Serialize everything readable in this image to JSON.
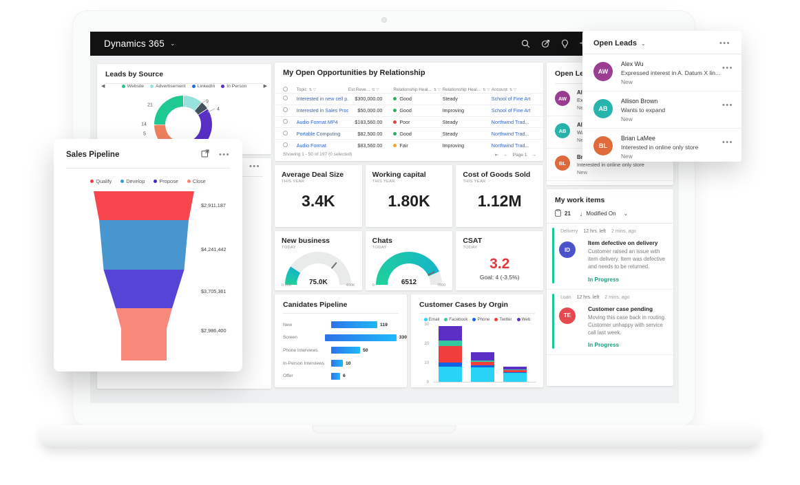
{
  "topbar": {
    "title": "Dynamics 365",
    "icons": [
      "search",
      "quick-create",
      "lightbulb",
      "add"
    ]
  },
  "panels": {
    "leads_by_source": {
      "title": "Leads by Source",
      "legend": [
        {
          "label": "Website",
          "color": "#1ec992"
        },
        {
          "label": "Advertisement",
          "color": "#97e2df"
        },
        {
          "label": "LinkedIn",
          "color": "#1a6fe0"
        },
        {
          "label": "In Person",
          "color": "#5a2fc6"
        }
      ],
      "chart": {
        "type": "pie",
        "segments": [
          {
            "label": "Advertisement",
            "value": 9,
            "color": "#97e2df"
          },
          {
            "label": "",
            "value": 4,
            "color": "#44505c"
          },
          {
            "label": "In Person",
            "value": 30,
            "color": "#5a2fc6"
          },
          {
            "label": "LinkedIn",
            "value": 5,
            "color": "#1a6fe0"
          },
          {
            "label": "",
            "value": 14,
            "color": "#f0805f"
          },
          {
            "label": "Website",
            "value": 21,
            "color": "#1ec992"
          }
        ]
      }
    },
    "opportunities": {
      "title": "My Open Opportunities by Relationship",
      "columns": [
        "Topic",
        "Est Reve...",
        "Relationship Heal...",
        "Relationship Heal...",
        "Account"
      ],
      "rows": [
        {
          "topic": "Interested in new cell p...",
          "revenue": "$300,000.00",
          "health": "Good",
          "health_color": "#27ae60",
          "trend": "Steady",
          "account": "School of Fine Art"
        },
        {
          "topic": "Interested in Sales Prod...",
          "revenue": "$50,000.00",
          "health": "Good",
          "health_color": "#27ae60",
          "trend": "Improving",
          "account": "School of Fine Art"
        },
        {
          "topic": "Audio Format MP4",
          "revenue": "$183,560.00",
          "health": "Poor",
          "health_color": "#e84040",
          "trend": "Steady",
          "account": "Northwind Trad..."
        },
        {
          "topic": "Portable Computing",
          "revenue": "$82,500.00",
          "health": "Good",
          "health_color": "#27ae60",
          "trend": "Steady",
          "account": "Northwind Trad..."
        },
        {
          "topic": "Audio Format",
          "revenue": "$83,560.00",
          "health": "Fair",
          "health_color": "#f5a623",
          "trend": "Improving",
          "account": "Northwind Trad..."
        }
      ],
      "footer": "Showing 1 - 50 of 197 (0 selected)",
      "page": "Page 1"
    },
    "kpis": [
      {
        "title": "Average Deal Size",
        "period": "THIS YEAR",
        "value": "3.4K"
      },
      {
        "title": "Working capital",
        "period": "THIS YEAR",
        "value": "1.80K"
      },
      {
        "title": "Cost of Goods Sold",
        "period": "THIS YEAR",
        "value": "1.12M"
      }
    ],
    "gauges": [
      {
        "title": "New business",
        "period": "TODAY",
        "value": "75.0K",
        "min_label": "0.00K",
        "max_label": "400K",
        "value_num": 75000,
        "max_num": 400000,
        "target_pct": 72,
        "color_start": "#1fd09b",
        "color_end": "#15b5c6"
      },
      {
        "title": "Chats",
        "period": "TODAY",
        "value": "6512",
        "min_label": "0",
        "max_label": "7500",
        "value_num": 6512,
        "max_num": 7500,
        "target_pct": 85,
        "color_start": "#1fd09b",
        "color_end": "#15b5c6"
      }
    ],
    "csat": {
      "title": "CSAT",
      "period": "TODAY",
      "value": "3.2",
      "goal": "Goal: 4 (-3.5%)"
    },
    "candidates": {
      "title": "Canidates Pipeline",
      "chart": {
        "type": "bar",
        "categories": [
          "New",
          "Screen",
          "Phone Interviews",
          "In-Person Interviews",
          "Offer"
        ],
        "values": [
          119,
          330,
          50,
          10,
          6
        ]
      }
    },
    "customer_cases": {
      "title": "Customer Cases by Orgin",
      "legend": [
        {
          "label": "Email",
          "color": "#29d3f5"
        },
        {
          "label": "Facebook",
          "color": "#35c79f"
        },
        {
          "label": "Phone",
          "color": "#1363e8"
        },
        {
          "label": "Twitter",
          "color": "#f23d3d"
        },
        {
          "label": "Web",
          "color": "#5b2fc6"
        }
      ],
      "chart": {
        "type": "stacked-bar",
        "yticks": [
          0,
          10,
          20,
          30
        ],
        "series": [
          {
            "name": "Email",
            "color": "#29d3f5",
            "values": [
              8,
              7.5,
              4.5
            ]
          },
          {
            "name": "Phone",
            "color": "#1363e8",
            "values": [
              2,
              1,
              0.5
            ]
          },
          {
            "name": "Twitter",
            "color": "#f23d3d",
            "values": [
              8.5,
              2,
              1
            ]
          },
          {
            "name": "Facebook",
            "color": "#35c79f",
            "values": [
              3,
              0.5,
              0.5
            ]
          },
          {
            "name": "Web",
            "color": "#5b2fc6",
            "values": [
              7.5,
              4.5,
              1.5
            ]
          }
        ]
      }
    },
    "open_leads": {
      "title": "Open Leads",
      "leads": [
        {
          "initials": "AW",
          "color": "#9b3d92",
          "name": "Alex Wu",
          "desc": "Expressed interest in A. Datum X lin...",
          "status": "New"
        },
        {
          "initials": "AB",
          "color": "#27b4ad",
          "name": "Allison Brown",
          "desc": "Wants to expand",
          "status": "New"
        },
        {
          "initials": "BL",
          "color": "#e06a3b",
          "name": "Brian LaMee",
          "desc": "Interested in online only store",
          "status": "New"
        }
      ]
    },
    "work_items": {
      "title": "My work items",
      "count": "21",
      "sort": "Modified On",
      "items": [
        {
          "tag": "Delivery",
          "left": "12 hrs. left",
          "ago": "2 mins. ago",
          "initials": "ID",
          "color": "#4b53cc",
          "title": "Item defective on delivery",
          "body": "Customer raised an issue with item delivery. Item was defective and needs to be returned.",
          "status": "In Progress"
        },
        {
          "tag": "Loan",
          "left": "12 hrs. left",
          "ago": "2 mins. ago",
          "initials": "TE",
          "color": "#e5494f",
          "title": "Customer case pending",
          "body": "Moving this case back in routing. Customer unhappy with service call last week.",
          "status": "In Progress"
        }
      ]
    },
    "sales_pipeline": {
      "title": "Sales Pipeline",
      "legend": [
        {
          "label": "Qualify",
          "color": "#f43b4a"
        },
        {
          "label": "Develop",
          "color": "#2f9bd8"
        },
        {
          "label": "Propose",
          "color": "#4423c9"
        },
        {
          "label": "Close",
          "color": "#f98575"
        }
      ],
      "chart": {
        "type": "funnel",
        "stages": [
          {
            "label": "Qualify",
            "value": "$2,911,187",
            "color": "#f6454d"
          },
          {
            "label": "Develop",
            "value": "$4,241,442",
            "color": "#4796cf"
          },
          {
            "label": "Propose",
            "value": "$3,705,361",
            "color": "#5544d6"
          },
          {
            "label": "Close",
            "value": "$2,986,400",
            "color": "#f8887a"
          }
        ]
      }
    }
  }
}
